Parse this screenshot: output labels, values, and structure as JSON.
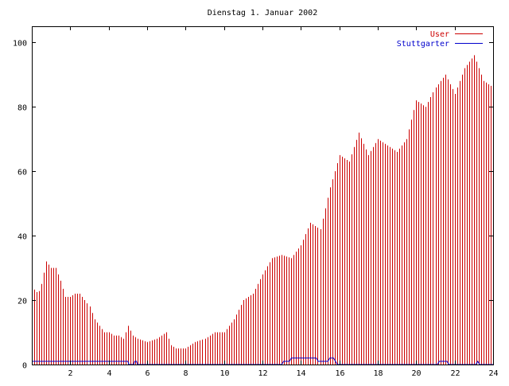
{
  "chart_data": {
    "type": "bar",
    "title": "Dienstag 1. Januar 2002",
    "xlabel": "",
    "ylabel": "",
    "xlim": [
      0,
      24
    ],
    "ylim": [
      0,
      105
    ],
    "x_ticks": [
      "2",
      "4",
      "6",
      "8",
      "10",
      "12",
      "14",
      "16",
      "18",
      "20",
      "22",
      "24"
    ],
    "y_ticks": [
      "0",
      "20",
      "40",
      "60",
      "80",
      "100"
    ],
    "grid": false,
    "legend_position": "top-right",
    "colors": {
      "User": "#cc0000",
      "Stuttgarter": "#0000cc",
      "axis": "#000000"
    },
    "series": [
      {
        "name": "User",
        "kind": "impulses",
        "points": [
          [
            0.0,
            24
          ],
          [
            0.33,
            22
          ],
          [
            0.5,
            25
          ],
          [
            0.75,
            32
          ],
          [
            1.0,
            30
          ],
          [
            1.25,
            30
          ],
          [
            1.5,
            26
          ],
          [
            1.75,
            21
          ],
          [
            2.0,
            21
          ],
          [
            2.25,
            22
          ],
          [
            2.5,
            22
          ],
          [
            2.75,
            20
          ],
          [
            3.0,
            18
          ],
          [
            3.25,
            14
          ],
          [
            3.5,
            12
          ],
          [
            3.75,
            10
          ],
          [
            4.0,
            10
          ],
          [
            4.25,
            9
          ],
          [
            4.5,
            9
          ],
          [
            4.75,
            8
          ],
          [
            5.0,
            12
          ],
          [
            5.25,
            9
          ],
          [
            5.5,
            8
          ],
          [
            6.0,
            7
          ],
          [
            6.5,
            8
          ],
          [
            7.0,
            10
          ],
          [
            7.25,
            6
          ],
          [
            7.5,
            5
          ],
          [
            8.0,
            5
          ],
          [
            8.5,
            7
          ],
          [
            9.0,
            8
          ],
          [
            9.5,
            10
          ],
          [
            10.0,
            10
          ],
          [
            10.5,
            14
          ],
          [
            11.0,
            20
          ],
          [
            11.5,
            22
          ],
          [
            12.0,
            28
          ],
          [
            12.5,
            33
          ],
          [
            13.0,
            34
          ],
          [
            13.5,
            33
          ],
          [
            14.0,
            37
          ],
          [
            14.5,
            44
          ],
          [
            15.0,
            42
          ],
          [
            15.5,
            55
          ],
          [
            16.0,
            65
          ],
          [
            16.5,
            63
          ],
          [
            17.0,
            72
          ],
          [
            17.5,
            65
          ],
          [
            18.0,
            70
          ],
          [
            18.5,
            68
          ],
          [
            19.0,
            66
          ],
          [
            19.5,
            70
          ],
          [
            20.0,
            82
          ],
          [
            20.5,
            80
          ],
          [
            21.0,
            86
          ],
          [
            21.5,
            90
          ],
          [
            22.0,
            84
          ],
          [
            22.5,
            92
          ],
          [
            23.0,
            96
          ],
          [
            23.5,
            88
          ],
          [
            24.0,
            86
          ]
        ]
      },
      {
        "name": "Stuttgarter",
        "kind": "line",
        "points": [
          [
            0.0,
            1
          ],
          [
            5.0,
            1
          ],
          [
            5.05,
            0
          ],
          [
            5.3,
            0
          ],
          [
            5.35,
            1
          ],
          [
            5.45,
            1
          ],
          [
            5.5,
            0
          ],
          [
            13.0,
            0
          ],
          [
            13.1,
            1
          ],
          [
            13.4,
            1
          ],
          [
            13.5,
            2
          ],
          [
            14.8,
            2
          ],
          [
            14.9,
            1
          ],
          [
            15.4,
            1
          ],
          [
            15.5,
            2
          ],
          [
            15.7,
            2
          ],
          [
            15.8,
            1
          ],
          [
            15.9,
            0
          ],
          [
            21.1,
            0
          ],
          [
            21.2,
            1
          ],
          [
            21.6,
            1
          ],
          [
            21.7,
            0
          ],
          [
            23.1,
            0
          ],
          [
            23.2,
            1
          ],
          [
            23.3,
            0
          ],
          [
            24.0,
            0
          ]
        ]
      }
    ]
  }
}
